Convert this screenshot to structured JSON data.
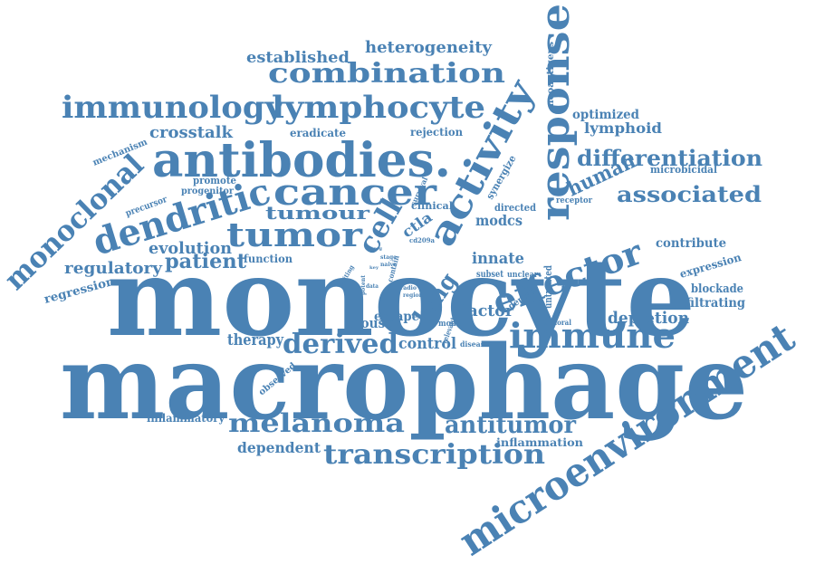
{
  "colors": {
    "word": "#4a82b4",
    "background": "#ffffff"
  },
  "words": [
    "macrophage",
    "monocyte",
    "microenvironment",
    "antibodies.",
    "response",
    "activity",
    "immunology",
    "lymphocyte",
    "combination",
    "cancer",
    "dendritic",
    "tumor",
    "tumour",
    "immune",
    "effector",
    "melanoma",
    "transcription",
    "monoclonal",
    "differentiation",
    "associated",
    "derived",
    "antitumor",
    "lung",
    "cell",
    "heterogeneity",
    "established",
    "crosstalk",
    "patient",
    "regulatory",
    "evolution",
    "human",
    "innate",
    "factor",
    "modcs",
    "control",
    "therapy",
    "mouse",
    "escape",
    "dependent",
    "inflammatory",
    "inflammation",
    "depletion",
    "infiltrating",
    "blockade",
    "expression",
    "contribute",
    "optimized",
    "lymphoid",
    "rejection",
    "eradicate",
    "mechanism",
    "promote",
    "progenitor",
    "precursor",
    "regression",
    "function",
    "clinical",
    "directed",
    "synergize",
    "receptor",
    "microbicidal",
    "neoantigens",
    "cd209a",
    "subset",
    "unclear",
    "untreated",
    "deplete",
    "model",
    "relevant",
    "disease",
    "tumoral",
    "observed",
    "editing",
    "stage",
    "naive",
    "potent",
    "region",
    "contain",
    "survival",
    "ctla",
    "data",
    "radio",
    "key",
    "treg",
    "tumor"
  ]
}
